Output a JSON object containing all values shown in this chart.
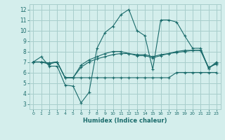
{
  "title": "",
  "xlabel": "Humidex (Indice chaleur)",
  "ylabel": "",
  "bg_color": "#d4eeec",
  "grid_color": "#a8cecc",
  "line_color": "#1a6b6b",
  "xlim": [
    -0.5,
    23.5
  ],
  "ylim": [
    2.5,
    12.5
  ],
  "xticks": [
    0,
    1,
    2,
    3,
    4,
    5,
    6,
    7,
    8,
    9,
    10,
    11,
    12,
    13,
    14,
    15,
    16,
    17,
    18,
    19,
    20,
    21,
    22,
    23
  ],
  "yticks": [
    3,
    4,
    5,
    6,
    7,
    8,
    9,
    10,
    11,
    12
  ],
  "series": [
    [
      7.0,
      7.5,
      6.6,
      6.6,
      4.8,
      4.7,
      3.1,
      4.1,
      8.3,
      9.8,
      10.4,
      11.5,
      12.0,
      10.0,
      9.5,
      6.3,
      11.0,
      11.0,
      10.8,
      9.5,
      8.3,
      8.3,
      6.4,
      7.0
    ],
    [
      7.0,
      7.0,
      6.9,
      7.0,
      5.5,
      5.5,
      6.7,
      7.2,
      7.5,
      7.8,
      8.0,
      8.0,
      7.8,
      7.6,
      7.6,
      7.4,
      7.6,
      7.8,
      8.0,
      8.1,
      8.1,
      8.1,
      6.4,
      6.9
    ],
    [
      7.0,
      7.0,
      6.8,
      7.0,
      5.5,
      5.5,
      5.5,
      5.5,
      5.5,
      5.5,
      5.5,
      5.5,
      5.5,
      5.5,
      5.5,
      5.5,
      5.5,
      5.5,
      6.0,
      6.0,
      6.0,
      6.0,
      6.0,
      6.0
    ],
    [
      7.0,
      7.0,
      6.9,
      7.0,
      5.5,
      5.5,
      6.5,
      7.0,
      7.3,
      7.5,
      7.7,
      7.8,
      7.8,
      7.7,
      7.7,
      7.5,
      7.7,
      7.8,
      7.9,
      8.0,
      8.1,
      8.1,
      6.5,
      6.8
    ]
  ]
}
